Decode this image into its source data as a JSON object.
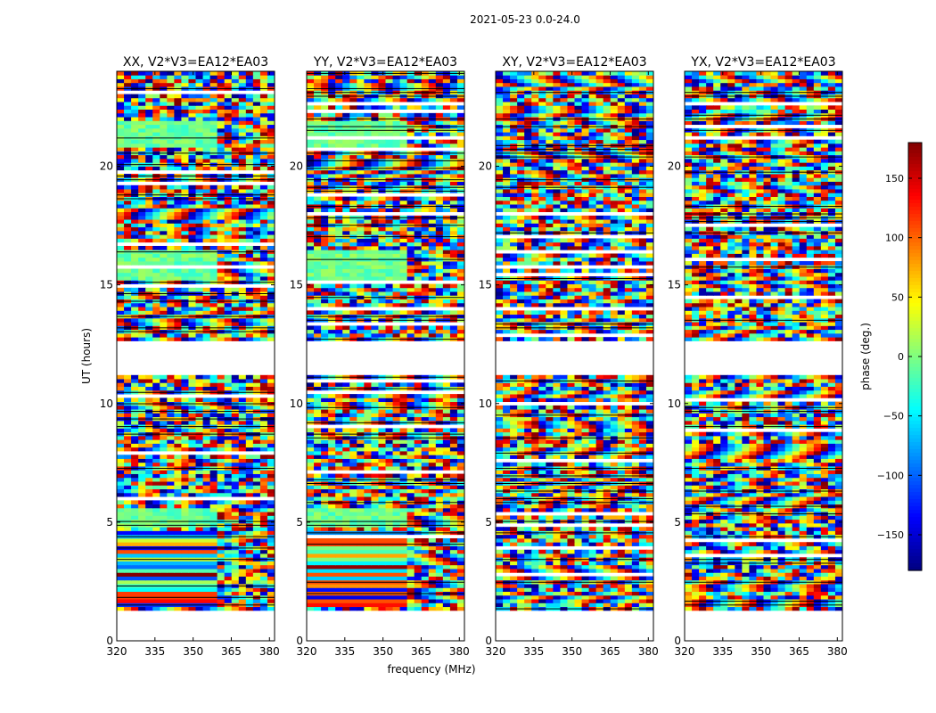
{
  "figure_title": "2021-05-23 0.0-24.0",
  "chart_data": [
    {
      "type": "heatmap",
      "title": "XX, V2*V3=EA12*EA03",
      "xlabel": "",
      "ylabel": "UT (hours)",
      "xlim": [
        320,
        382
      ],
      "ylim": [
        0,
        24
      ],
      "xticks": [
        320,
        335,
        350,
        365,
        380
      ],
      "yticks": [
        0,
        5,
        10,
        15,
        20
      ],
      "value": "phase (deg.)"
    },
    {
      "type": "heatmap",
      "title": "YY, V2*V3=EA12*EA03",
      "xlabel": "frequency (MHz)",
      "ylabel": "",
      "xlim": [
        320,
        382
      ],
      "ylim": [
        0,
        24
      ],
      "xticks": [
        320,
        335,
        350,
        365,
        380
      ],
      "yticks": [
        0,
        5,
        10,
        15,
        20
      ],
      "value": "phase (deg.)"
    },
    {
      "type": "heatmap",
      "title": "XY, V2*V3=EA12*EA03",
      "xlabel": "",
      "ylabel": "",
      "xlim": [
        320,
        382
      ],
      "ylim": [
        0,
        24
      ],
      "xticks": [
        320,
        335,
        350,
        365,
        380
      ],
      "yticks": [
        0,
        5,
        10,
        15,
        20
      ],
      "value": "phase (deg.)"
    },
    {
      "type": "heatmap",
      "title": "YX, V2*V3=EA12*EA03",
      "xlabel": "",
      "ylabel": "",
      "xlim": [
        320,
        382
      ],
      "ylim": [
        0,
        24
      ],
      "xticks": [
        320,
        335,
        350,
        365,
        380
      ],
      "yticks": [
        0,
        5,
        10,
        15,
        20
      ],
      "value": "phase (deg.)"
    }
  ],
  "colorbar": {
    "label": "phase (deg.)",
    "range": [
      -180,
      180
    ],
    "ticks": [
      150,
      100,
      50,
      0,
      -50,
      -100,
      -150
    ],
    "colormap": "jet"
  },
  "data_gap_hours": [
    11.2,
    12.7
  ]
}
